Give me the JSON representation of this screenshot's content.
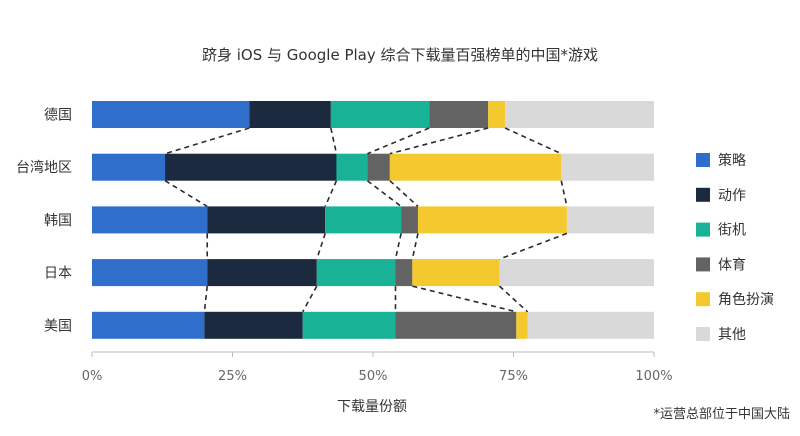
{
  "chart_data": {
    "type": "bar",
    "orientation": "horizontal",
    "stacked": "percent",
    "title": "跻身 iOS 与 Google Play 综合下载量百强榜单的中国*游戏",
    "xlabel": "下载量份额",
    "ylabel": "",
    "xlim": [
      0,
      100
    ],
    "x_ticks": [
      "0%",
      "25%",
      "50%",
      "75%",
      "100%"
    ],
    "categories": [
      "德国",
      "台湾地区",
      "韩国",
      "日本",
      "美国"
    ],
    "series": [
      {
        "name": "策略",
        "color": "#2f6fcb",
        "values": [
          28,
          13,
          20.5,
          20.5,
          20
        ]
      },
      {
        "name": "动作",
        "color": "#1b2a3f",
        "values": [
          14.5,
          30.5,
          21,
          19.5,
          17.5
        ]
      },
      {
        "name": "街机",
        "color": "#18b396",
        "values": [
          17.5,
          5.5,
          13.5,
          14,
          16.5
        ]
      },
      {
        "name": "体育",
        "color": "#636363",
        "values": [
          10.5,
          4,
          3,
          3,
          21.5
        ]
      },
      {
        "name": "角色扮演",
        "color": "#f4c92f",
        "values": [
          3,
          30.5,
          26.5,
          15.5,
          2
        ]
      },
      {
        "name": "其他",
        "color": "#d9d9d9",
        "values": [
          26.5,
          16.5,
          15.5,
          27.5,
          22.5
        ]
      }
    ],
    "legend_position": "right",
    "grid": false,
    "footnote": "*运营总部位于中国大陆"
  }
}
